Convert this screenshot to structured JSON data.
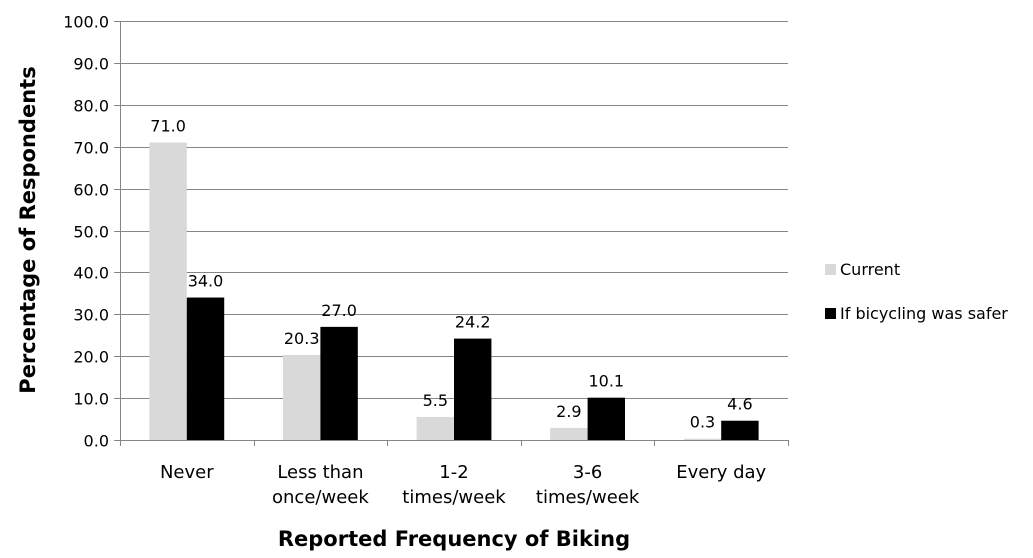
{
  "chart_data": {
    "type": "bar",
    "categories": [
      [
        "Never"
      ],
      [
        "Less than",
        "once/week"
      ],
      [
        "1-2",
        "times/week"
      ],
      [
        "3-6",
        "times/week"
      ],
      [
        "Every day"
      ]
    ],
    "series": [
      {
        "name": "Current",
        "values": [
          71.0,
          20.3,
          5.5,
          2.9,
          0.3
        ],
        "color": "#d9d9d9"
      },
      {
        "name": "If bicycling was safer",
        "values": [
          34.0,
          27.0,
          24.2,
          10.1,
          4.6
        ],
        "color": "#000000"
      }
    ],
    "xlabel": "Reported Frequency of Biking",
    "ylabel": "Percentage of Respondents",
    "ylim": [
      0,
      100
    ],
    "ytick_step": 10,
    "ytick_decimals": 1,
    "value_decimals": 1,
    "grid": true,
    "gridline_color": "#868686",
    "legend_position": "right"
  }
}
